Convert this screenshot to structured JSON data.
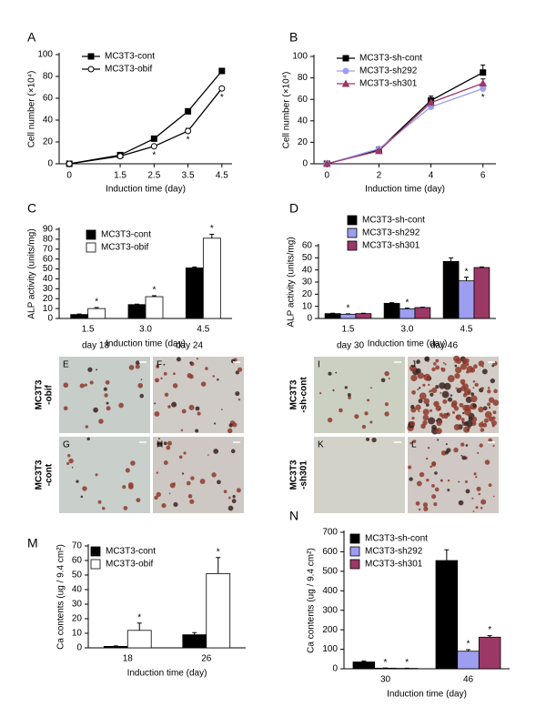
{
  "chart_data": [
    {
      "panel": "A",
      "type": "line",
      "x": [
        0,
        1.5,
        2.5,
        3.5,
        4.5
      ],
      "xlim": [
        -0.3,
        4.8
      ],
      "xticks": [
        0,
        1.5,
        2.5,
        3.5,
        4.5
      ],
      "ylim": [
        0,
        100
      ],
      "yticks": [
        0,
        20,
        40,
        60,
        80,
        100
      ],
      "xlabel": "Induction time (day)",
      "ylabel": "Cell number (×10⁴)",
      "legend": "upper-left",
      "series": [
        {
          "name": "MC3T3-cont",
          "color": "#000000",
          "marker": "square",
          "values": [
            0,
            8,
            23,
            48,
            85
          ],
          "errors": [
            0.5,
            0.8,
            1,
            2.5,
            1.5
          ]
        },
        {
          "name": "MC3T3-obif",
          "color": "#000000",
          "marker": "open-circle",
          "values": [
            0,
            7,
            16,
            30,
            69
          ],
          "errors": [
            0.5,
            0.8,
            1,
            2.5,
            1.5
          ],
          "significance": [
            null,
            null,
            "*",
            "*",
            "*"
          ]
        }
      ]
    },
    {
      "panel": "B",
      "type": "line",
      "x": [
        0,
        2,
        4,
        6
      ],
      "xlim": [
        -0.5,
        6.5
      ],
      "xticks": [
        0,
        2,
        4,
        6
      ],
      "ylim": [
        0,
        100
      ],
      "yticks": [
        0,
        20,
        40,
        60,
        80,
        100
      ],
      "xlabel": "Induction time (day)",
      "ylabel": "Cell number (×10⁴)",
      "legend": "upper-left",
      "series": [
        {
          "name": "MC3T3-sh-cont",
          "color": "#000000",
          "marker": "square",
          "values": [
            0,
            13,
            59,
            85
          ],
          "errors": [
            0.5,
            1,
            4,
            7
          ]
        },
        {
          "name": "MC3T3-sh292",
          "color": "#9d9ef0",
          "marker": "circle",
          "values": [
            0,
            14,
            53,
            70
          ],
          "errors": [
            0.5,
            1,
            6,
            5
          ],
          "significance": [
            null,
            null,
            null,
            "*"
          ]
        },
        {
          "name": "MC3T3-sh301",
          "color": "#9b3866",
          "marker": "triangle",
          "values": [
            0,
            12,
            57,
            75
          ],
          "errors": [
            0.5,
            1,
            4,
            4
          ]
        }
      ]
    },
    {
      "panel": "C",
      "type": "bar",
      "categories": [
        "1.5",
        "3.0",
        "4.5"
      ],
      "ylim": [
        0,
        90
      ],
      "yticks": [
        0,
        10,
        20,
        30,
        40,
        50,
        60,
        70,
        80,
        90
      ],
      "xlabel": "Induction time (day)",
      "ylabel": "ALP activity (units/mg)",
      "legend": "upper-left",
      "series": [
        {
          "name": "MC3T3-cont",
          "color": "#000000",
          "values": [
            4,
            14,
            51
          ],
          "errors": [
            0.5,
            0.5,
            1
          ]
        },
        {
          "name": "MC3T3-obif",
          "color": "#ffffff",
          "values": [
            10,
            22,
            81
          ],
          "errors": [
            1,
            1,
            4
          ],
          "significance": [
            "*",
            "*",
            "*"
          ]
        }
      ]
    },
    {
      "panel": "D",
      "type": "bar",
      "categories": [
        "1.5",
        "3.0",
        "4.5"
      ],
      "ylim": [
        0,
        60
      ],
      "yticks": [
        0,
        10,
        20,
        30,
        40,
        50,
        60
      ],
      "xlabel": "Induction time (day)",
      "ylabel": "ALP activity (units/mg)",
      "legend": "top",
      "series": [
        {
          "name": "MC3T3-sh-cont",
          "color": "#000000",
          "values": [
            4,
            12.5,
            47
          ],
          "errors": [
            0.3,
            0.5,
            3
          ]
        },
        {
          "name": "MC3T3-sh292",
          "color": "#9d9ef0",
          "values": [
            3.5,
            8,
            31
          ],
          "errors": [
            0.3,
            0.5,
            3
          ],
          "significance": [
            "*",
            "*",
            "*"
          ]
        },
        {
          "name": "MC3T3-sh301",
          "color": "#9b3866",
          "values": [
            4,
            9,
            42
          ],
          "errors": [
            0.3,
            0.3,
            0.5
          ]
        }
      ]
    },
    {
      "panel": "M",
      "type": "bar",
      "categories": [
        "18",
        "26"
      ],
      "ylim": [
        0,
        70
      ],
      "yticks": [
        0,
        10,
        20,
        30,
        40,
        50,
        60,
        70
      ],
      "xlabel": "Induction time (day)",
      "ylabel": "Ca contents (ug / 9.4 cm²)",
      "legend": "upper-left",
      "series": [
        {
          "name": "MC3T3-cont",
          "color": "#000000",
          "values": [
            1,
            9
          ],
          "errors": [
            0.3,
            1.5
          ]
        },
        {
          "name": "MC3T3-obif",
          "color": "#ffffff",
          "values": [
            12,
            51
          ],
          "errors": [
            5,
            11
          ],
          "significance": [
            "*",
            "*"
          ]
        }
      ]
    },
    {
      "panel": "N",
      "type": "bar",
      "categories": [
        "30",
        "46"
      ],
      "ylim": [
        0,
        700
      ],
      "yticks": [
        0,
        100,
        200,
        300,
        400,
        500,
        600,
        700
      ],
      "xlabel": "Induction time (day)",
      "ylabel": "Ca contents (ug / 9.4 cm²)",
      "legend": "upper-left",
      "series": [
        {
          "name": "MC3T3-sh-cont",
          "color": "#000000",
          "values": [
            35,
            555
          ],
          "errors": [
            5,
            55
          ]
        },
        {
          "name": "MC3T3-sh292",
          "color": "#9d9ef0",
          "values": [
            3,
            90
          ],
          "errors": [
            1,
            8
          ],
          "significance": [
            "*",
            "*"
          ]
        },
        {
          "name": "MC3T3-sh301",
          "color": "#9b3866",
          "values": [
            2,
            162
          ],
          "errors": [
            1,
            8
          ],
          "significance": [
            "*",
            "*"
          ]
        }
      ]
    }
  ],
  "image_panels": [
    {
      "columns": [
        "day 18",
        "day 24"
      ],
      "rows": [
        [
          "MC3T3",
          "-obif"
        ],
        [
          "MC3T3",
          "-cont"
        ]
      ],
      "panels": [
        "E",
        "F",
        "G",
        "H"
      ]
    },
    {
      "columns": [
        "day 30",
        "day 46"
      ],
      "rows": [
        [
          "MC3T3",
          "-sh-cont"
        ],
        [
          "MC3T3",
          "-sh301"
        ]
      ],
      "panels": [
        "I",
        "J",
        "K",
        "L"
      ]
    }
  ]
}
